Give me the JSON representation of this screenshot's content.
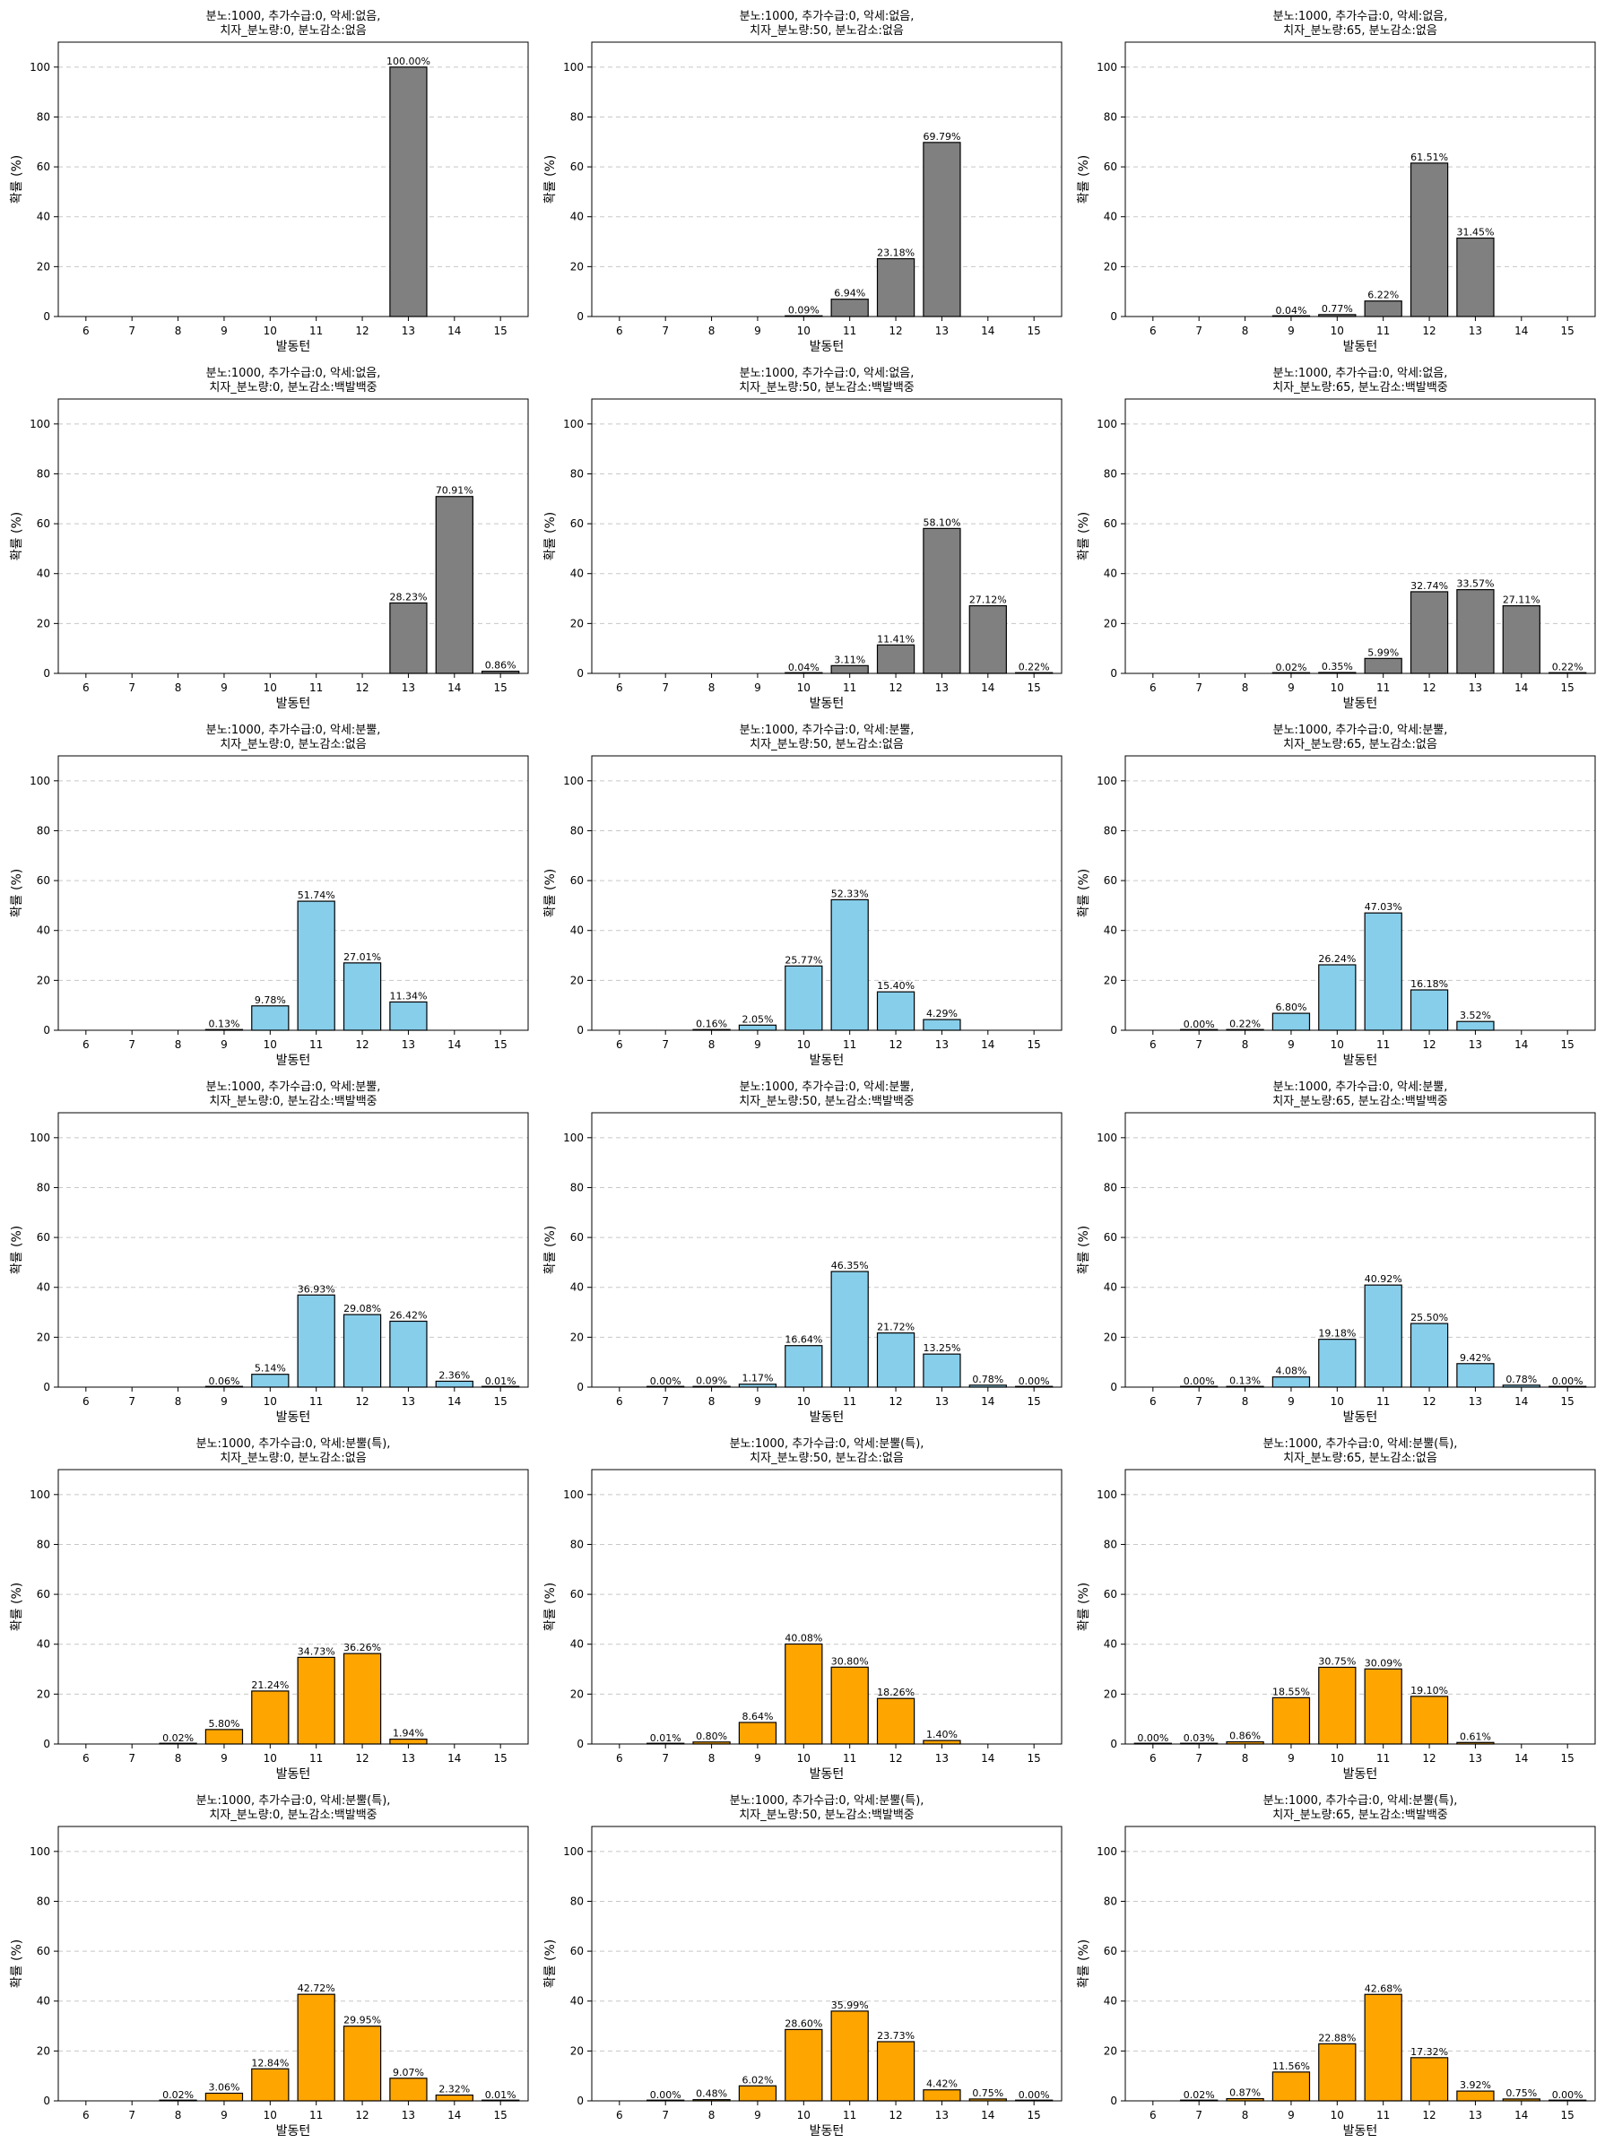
{
  "chart_data": [
    {
      "type": "bar",
      "title_line1": "분노:1000, 추가수급:0, 악세:없음,",
      "title_line2": "치자_분노량:0, 분노감소:없음",
      "color": "#808080",
      "categories": [
        "6",
        "7",
        "8",
        "9",
        "10",
        "11",
        "12",
        "13",
        "14",
        "15"
      ],
      "values": [
        0,
        0,
        0,
        0,
        0,
        0,
        0,
        100.0,
        0,
        0
      ],
      "labels": [
        "",
        "",
        "",
        "",
        "",
        "",
        "",
        "100.00%",
        "",
        ""
      ],
      "xlabel": "발동턴",
      "ylabel": "확률 (%)",
      "ylim": [
        0,
        110
      ],
      "yticks": [
        0,
        20,
        40,
        60,
        80,
        100
      ],
      "grid": "y-dashed"
    },
    {
      "type": "bar",
      "title_line1": "분노:1000, 추가수급:0, 악세:없음,",
      "title_line2": "치자_분노량:50, 분노감소:없음",
      "color": "#808080",
      "categories": [
        "6",
        "7",
        "8",
        "9",
        "10",
        "11",
        "12",
        "13",
        "14",
        "15"
      ],
      "values": [
        0,
        0,
        0,
        0,
        0.09,
        6.94,
        23.18,
        69.79,
        0,
        0
      ],
      "labels": [
        "",
        "",
        "",
        "",
        "0.09%",
        "6.94%",
        "23.18%",
        "69.79%",
        "",
        ""
      ],
      "xlabel": "발동턴",
      "ylabel": "확률 (%)",
      "ylim": [
        0,
        110
      ],
      "yticks": [
        0,
        20,
        40,
        60,
        80,
        100
      ],
      "grid": "y-dashed"
    },
    {
      "type": "bar",
      "title_line1": "분노:1000, 추가수급:0, 악세:없음,",
      "title_line2": "치자_분노량:65, 분노감소:없음",
      "color": "#808080",
      "categories": [
        "6",
        "7",
        "8",
        "9",
        "10",
        "11",
        "12",
        "13",
        "14",
        "15"
      ],
      "values": [
        0,
        0,
        0,
        0.04,
        0.77,
        6.22,
        61.51,
        31.45,
        0,
        0
      ],
      "labels": [
        "",
        "",
        "",
        "0.04%",
        "0.77%",
        "6.22%",
        "61.51%",
        "31.45%",
        "",
        ""
      ],
      "xlabel": "발동턴",
      "ylabel": "확률 (%)",
      "ylim": [
        0,
        110
      ],
      "yticks": [
        0,
        20,
        40,
        60,
        80,
        100
      ],
      "grid": "y-dashed"
    },
    {
      "type": "bar",
      "title_line1": "분노:1000, 추가수급:0, 악세:없음,",
      "title_line2": "치자_분노량:0, 분노감소:백발백중",
      "color": "#808080",
      "categories": [
        "6",
        "7",
        "8",
        "9",
        "10",
        "11",
        "12",
        "13",
        "14",
        "15"
      ],
      "values": [
        0,
        0,
        0,
        0,
        0,
        0,
        0,
        28.23,
        70.91,
        0.86
      ],
      "labels": [
        "",
        "",
        "",
        "",
        "",
        "",
        "",
        "28.23%",
        "70.91%",
        "0.86%"
      ],
      "xlabel": "발동턴",
      "ylabel": "확률 (%)",
      "ylim": [
        0,
        110
      ],
      "yticks": [
        0,
        20,
        40,
        60,
        80,
        100
      ],
      "grid": "y-dashed"
    },
    {
      "type": "bar",
      "title_line1": "분노:1000, 추가수급:0, 악세:없음,",
      "title_line2": "치자_분노량:50, 분노감소:백발백중",
      "color": "#808080",
      "categories": [
        "6",
        "7",
        "8",
        "9",
        "10",
        "11",
        "12",
        "13",
        "14",
        "15"
      ],
      "values": [
        0,
        0,
        0,
        0,
        0.04,
        3.11,
        11.41,
        58.1,
        27.12,
        0.22
      ],
      "labels": [
        "",
        "",
        "",
        "",
        "0.04%",
        "3.11%",
        "11.41%",
        "58.10%",
        "27.12%",
        "0.22%"
      ],
      "xlabel": "발동턴",
      "ylabel": "확률 (%)",
      "ylim": [
        0,
        110
      ],
      "yticks": [
        0,
        20,
        40,
        60,
        80,
        100
      ],
      "grid": "y-dashed"
    },
    {
      "type": "bar",
      "title_line1": "분노:1000, 추가수급:0, 악세:없음,",
      "title_line2": "치자_분노량:65, 분노감소:백발백중",
      "color": "#808080",
      "categories": [
        "6",
        "7",
        "8",
        "9",
        "10",
        "11",
        "12",
        "13",
        "14",
        "15"
      ],
      "values": [
        0,
        0,
        0,
        0.02,
        0.35,
        5.99,
        32.74,
        33.57,
        27.11,
        0.22
      ],
      "labels": [
        "",
        "",
        "",
        "0.02%",
        "0.35%",
        "5.99%",
        "32.74%",
        "33.57%",
        "27.11%",
        "0.22%"
      ],
      "xlabel": "발동턴",
      "ylabel": "확률 (%)",
      "ylim": [
        0,
        110
      ],
      "yticks": [
        0,
        20,
        40,
        60,
        80,
        100
      ],
      "grid": "y-dashed"
    },
    {
      "type": "bar",
      "title_line1": "분노:1000, 추가수급:0, 악세:분뿔,",
      "title_line2": "치자_분노량:0, 분노감소:없음",
      "color": "#87CEEB",
      "categories": [
        "6",
        "7",
        "8",
        "9",
        "10",
        "11",
        "12",
        "13",
        "14",
        "15"
      ],
      "values": [
        0,
        0,
        0,
        0.13,
        9.78,
        51.74,
        27.01,
        11.34,
        0,
        0
      ],
      "labels": [
        "",
        "",
        "",
        "0.13%",
        "9.78%",
        "51.74%",
        "27.01%",
        "11.34%",
        "",
        ""
      ],
      "xlabel": "발동턴",
      "ylabel": "확률 (%)",
      "ylim": [
        0,
        110
      ],
      "yticks": [
        0,
        20,
        40,
        60,
        80,
        100
      ],
      "grid": "y-dashed"
    },
    {
      "type": "bar",
      "title_line1": "분노:1000, 추가수급:0, 악세:분뿔,",
      "title_line2": "치자_분노량:50, 분노감소:없음",
      "color": "#87CEEB",
      "categories": [
        "6",
        "7",
        "8",
        "9",
        "10",
        "11",
        "12",
        "13",
        "14",
        "15"
      ],
      "values": [
        0,
        0,
        0.16,
        2.05,
        25.77,
        52.33,
        15.4,
        4.29,
        0,
        0
      ],
      "labels": [
        "",
        "",
        "0.16%",
        "2.05%",
        "25.77%",
        "52.33%",
        "15.40%",
        "4.29%",
        "",
        ""
      ],
      "xlabel": "발동턴",
      "ylabel": "확률 (%)",
      "ylim": [
        0,
        110
      ],
      "yticks": [
        0,
        20,
        40,
        60,
        80,
        100
      ],
      "grid": "y-dashed"
    },
    {
      "type": "bar",
      "title_line1": "분노:1000, 추가수급:0, 악세:분뿔,",
      "title_line2": "치자_분노량:65, 분노감소:없음",
      "color": "#87CEEB",
      "categories": [
        "6",
        "7",
        "8",
        "9",
        "10",
        "11",
        "12",
        "13",
        "14",
        "15"
      ],
      "values": [
        0,
        0.0,
        0.22,
        6.8,
        26.24,
        47.03,
        16.18,
        3.52,
        0,
        0
      ],
      "labels": [
        "",
        "0.00%",
        "0.22%",
        "6.80%",
        "26.24%",
        "47.03%",
        "16.18%",
        "3.52%",
        "",
        ""
      ],
      "xlabel": "발동턴",
      "ylabel": "확률 (%)",
      "ylim": [
        0,
        110
      ],
      "yticks": [
        0,
        20,
        40,
        60,
        80,
        100
      ],
      "grid": "y-dashed"
    },
    {
      "type": "bar",
      "title_line1": "분노:1000, 추가수급:0, 악세:분뿔,",
      "title_line2": "치자_분노량:0, 분노감소:백발백중",
      "color": "#87CEEB",
      "categories": [
        "6",
        "7",
        "8",
        "9",
        "10",
        "11",
        "12",
        "13",
        "14",
        "15"
      ],
      "values": [
        0,
        0,
        0,
        0.06,
        5.14,
        36.93,
        29.08,
        26.42,
        2.36,
        0.01
      ],
      "labels": [
        "",
        "",
        "",
        "0.06%",
        "5.14%",
        "36.93%",
        "29.08%",
        "26.42%",
        "2.36%",
        "0.01%"
      ],
      "xlabel": "발동턴",
      "ylabel": "확률 (%)",
      "ylim": [
        0,
        110
      ],
      "yticks": [
        0,
        20,
        40,
        60,
        80,
        100
      ],
      "grid": "y-dashed"
    },
    {
      "type": "bar",
      "title_line1": "분노:1000, 추가수급:0, 악세:분뿔,",
      "title_line2": "치자_분노량:50, 분노감소:백발백중",
      "color": "#87CEEB",
      "categories": [
        "6",
        "7",
        "8",
        "9",
        "10",
        "11",
        "12",
        "13",
        "14",
        "15"
      ],
      "values": [
        0,
        0.0,
        0.09,
        1.17,
        16.64,
        46.35,
        21.72,
        13.25,
        0.78,
        0.0
      ],
      "labels": [
        "",
        "0.00%",
        "0.09%",
        "1.17%",
        "16.64%",
        "46.35%",
        "21.72%",
        "13.25%",
        "0.78%",
        "0.00%"
      ],
      "xlabel": "발동턴",
      "ylabel": "확률 (%)",
      "ylim": [
        0,
        110
      ],
      "yticks": [
        0,
        20,
        40,
        60,
        80,
        100
      ],
      "grid": "y-dashed"
    },
    {
      "type": "bar",
      "title_line1": "분노:1000, 추가수급:0, 악세:분뿔,",
      "title_line2": "치자_분노량:65, 분노감소:백발백중",
      "color": "#87CEEB",
      "categories": [
        "6",
        "7",
        "8",
        "9",
        "10",
        "11",
        "12",
        "13",
        "14",
        "15"
      ],
      "values": [
        0,
        0.0,
        0.13,
        4.08,
        19.18,
        40.92,
        25.5,
        9.42,
        0.78,
        0.0
      ],
      "labels": [
        "",
        "0.00%",
        "0.13%",
        "4.08%",
        "19.18%",
        "40.92%",
        "25.50%",
        "9.42%",
        "0.78%",
        "0.00%"
      ],
      "xlabel": "발동턴",
      "ylabel": "확률 (%)",
      "ylim": [
        0,
        110
      ],
      "yticks": [
        0,
        20,
        40,
        60,
        80,
        100
      ],
      "grid": "y-dashed"
    },
    {
      "type": "bar",
      "title_line1": "분노:1000, 추가수급:0, 악세:분뿔(특),",
      "title_line2": "치자_분노량:0, 분노감소:없음",
      "color": "#FFA500",
      "categories": [
        "6",
        "7",
        "8",
        "9",
        "10",
        "11",
        "12",
        "13",
        "14",
        "15"
      ],
      "values": [
        0,
        0,
        0.02,
        5.8,
        21.24,
        34.73,
        36.26,
        1.94,
        0,
        0
      ],
      "labels": [
        "",
        "",
        "0.02%",
        "5.80%",
        "21.24%",
        "34.73%",
        "36.26%",
        "1.94%",
        "",
        ""
      ],
      "xlabel": "발동턴",
      "ylabel": "확률 (%)",
      "ylim": [
        0,
        110
      ],
      "yticks": [
        0,
        20,
        40,
        60,
        80,
        100
      ],
      "grid": "y-dashed"
    },
    {
      "type": "bar",
      "title_line1": "분노:1000, 추가수급:0, 악세:분뿔(특),",
      "title_line2": "치자_분노량:50, 분노감소:없음",
      "color": "#FFA500",
      "categories": [
        "6",
        "7",
        "8",
        "9",
        "10",
        "11",
        "12",
        "13",
        "14",
        "15"
      ],
      "values": [
        0,
        0.01,
        0.8,
        8.64,
        40.08,
        30.8,
        18.26,
        1.4,
        0,
        0
      ],
      "labels": [
        "",
        "0.01%",
        "0.80%",
        "8.64%",
        "40.08%",
        "30.80%",
        "18.26%",
        "1.40%",
        "",
        ""
      ],
      "xlabel": "발동턴",
      "ylabel": "확률 (%)",
      "ylim": [
        0,
        110
      ],
      "yticks": [
        0,
        20,
        40,
        60,
        80,
        100
      ],
      "grid": "y-dashed"
    },
    {
      "type": "bar",
      "title_line1": "분노:1000, 추가수급:0, 악세:분뿔(특),",
      "title_line2": "치자_분노량:65, 분노감소:없음",
      "color": "#FFA500",
      "categories": [
        "6",
        "7",
        "8",
        "9",
        "10",
        "11",
        "12",
        "13",
        "14",
        "15"
      ],
      "values": [
        0.0,
        0.03,
        0.86,
        18.55,
        30.75,
        30.09,
        19.1,
        0.61,
        0,
        0
      ],
      "labels": [
        "0.00%",
        "0.03%",
        "0.86%",
        "18.55%",
        "30.75%",
        "30.09%",
        "19.10%",
        "0.61%",
        "",
        ""
      ],
      "xlabel": "발동턴",
      "ylabel": "확률 (%)",
      "ylim": [
        0,
        110
      ],
      "yticks": [
        0,
        20,
        40,
        60,
        80,
        100
      ],
      "grid": "y-dashed"
    },
    {
      "type": "bar",
      "title_line1": "분노:1000, 추가수급:0, 악세:분뿔(특),",
      "title_line2": "치자_분노량:0, 분노감소:백발백중",
      "color": "#FFA500",
      "categories": [
        "6",
        "7",
        "8",
        "9",
        "10",
        "11",
        "12",
        "13",
        "14",
        "15"
      ],
      "values": [
        0,
        0,
        0.02,
        3.06,
        12.84,
        42.72,
        29.95,
        9.07,
        2.32,
        0.01
      ],
      "labels": [
        "",
        "",
        "0.02%",
        "3.06%",
        "12.84%",
        "42.72%",
        "29.95%",
        "9.07%",
        "2.32%",
        "0.01%"
      ],
      "xlabel": "발동턴",
      "ylabel": "확률 (%)",
      "ylim": [
        0,
        110
      ],
      "yticks": [
        0,
        20,
        40,
        60,
        80,
        100
      ],
      "grid": "y-dashed"
    },
    {
      "type": "bar",
      "title_line1": "분노:1000, 추가수급:0, 악세:분뿔(특),",
      "title_line2": "치자_분노량:50, 분노감소:백발백중",
      "color": "#FFA500",
      "categories": [
        "6",
        "7",
        "8",
        "9",
        "10",
        "11",
        "12",
        "13",
        "14",
        "15"
      ],
      "values": [
        0,
        0.0,
        0.48,
        6.02,
        28.6,
        35.99,
        23.73,
        4.42,
        0.75,
        0.0
      ],
      "labels": [
        "",
        "0.00%",
        "0.48%",
        "6.02%",
        "28.60%",
        "35.99%",
        "23.73%",
        "4.42%",
        "0.75%",
        "0.00%"
      ],
      "xlabel": "발동턴",
      "ylabel": "확률 (%)",
      "ylim": [
        0,
        110
      ],
      "yticks": [
        0,
        20,
        40,
        60,
        80,
        100
      ],
      "grid": "y-dashed"
    },
    {
      "type": "bar",
      "title_line1": "분노:1000, 추가수급:0, 악세:분뿔(특),",
      "title_line2": "치자_분노량:65, 분노감소:백발백중",
      "color": "#FFA500",
      "categories": [
        "6",
        "7",
        "8",
        "9",
        "10",
        "11",
        "12",
        "13",
        "14",
        "15"
      ],
      "values": [
        0,
        0.02,
        0.87,
        11.56,
        22.88,
        42.68,
        17.32,
        3.92,
        0.75,
        0.0
      ],
      "labels": [
        "",
        "0.02%",
        "0.87%",
        "11.56%",
        "22.88%",
        "42.68%",
        "17.32%",
        "3.92%",
        "0.75%",
        "0.00%"
      ],
      "xlabel": "발동턴",
      "ylabel": "확률 (%)",
      "ylim": [
        0,
        110
      ],
      "yticks": [
        0,
        20,
        40,
        60,
        80,
        100
      ],
      "grid": "y-dashed"
    }
  ]
}
